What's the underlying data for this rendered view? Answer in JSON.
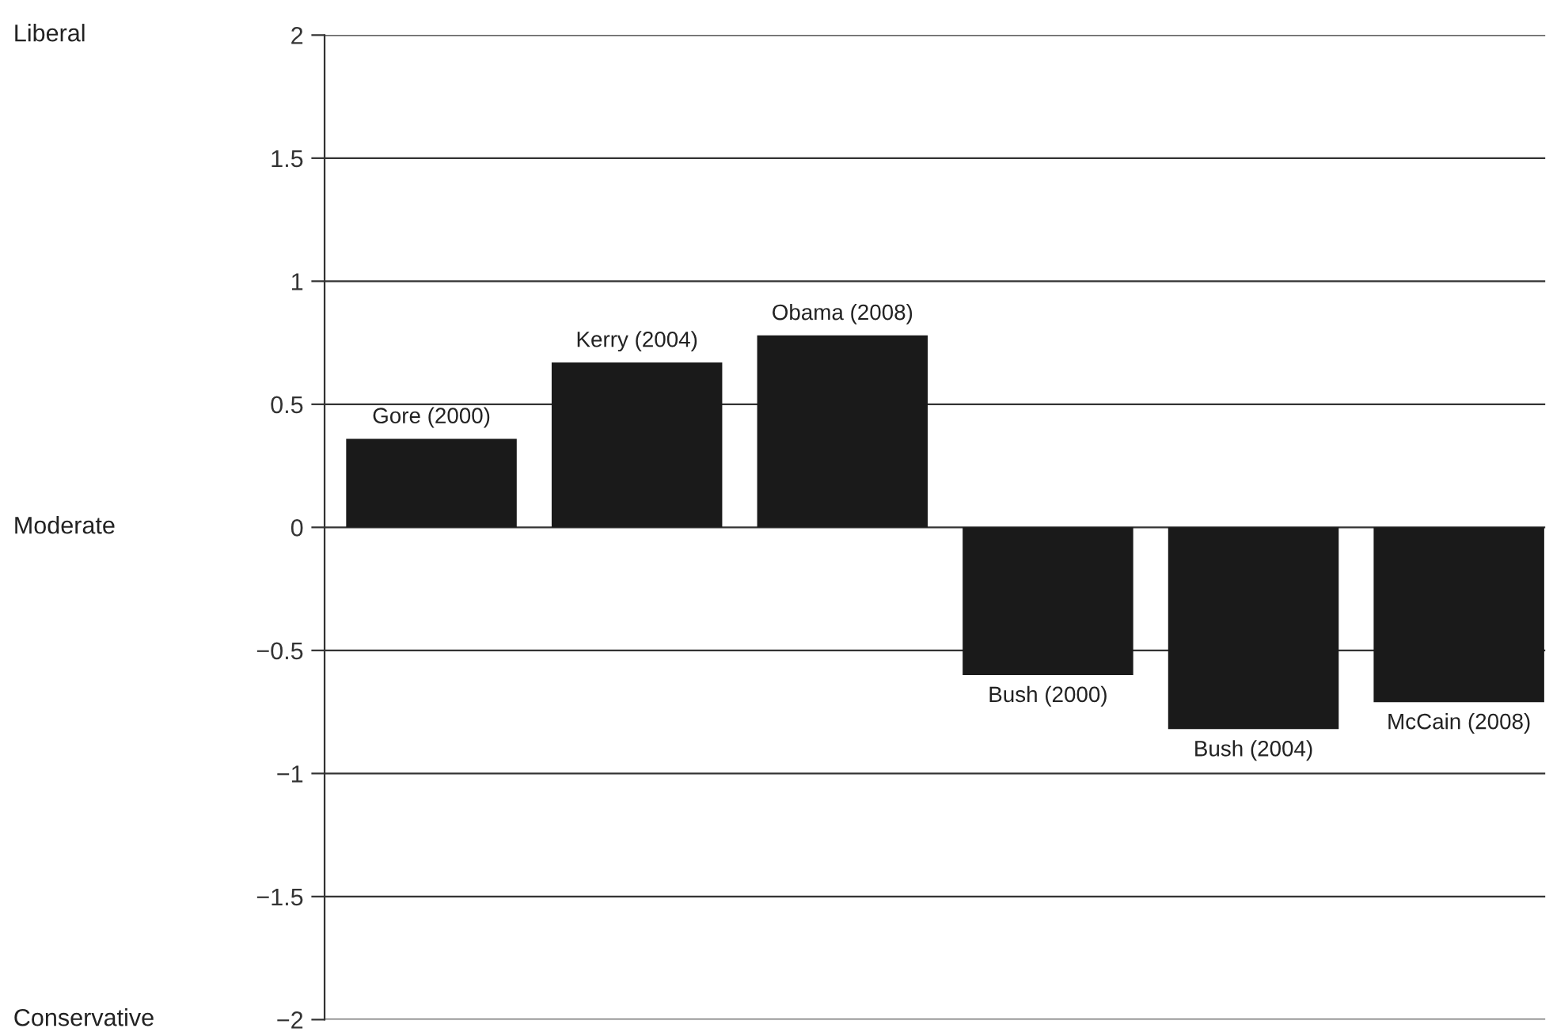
{
  "chart_data": {
    "type": "bar",
    "categories": [
      "Gore (2000)",
      "Kerry (2004)",
      "Obama (2008)",
      "Bush (2000)",
      "Bush (2004)",
      "McCain (2008)"
    ],
    "values": [
      0.36,
      0.67,
      0.78,
      -0.6,
      -0.82,
      -0.71
    ],
    "color": "#1a1a1a",
    "ylim": [
      -2,
      2
    ],
    "yticks": [
      {
        "value": -2,
        "label": "−2"
      },
      {
        "value": -1.5,
        "label": "−1.5"
      },
      {
        "value": -1,
        "label": "−1"
      },
      {
        "value": -0.5,
        "label": "−0.5"
      },
      0,
      0.5,
      1,
      1.5,
      2
    ],
    "grid": "y",
    "annotations": [
      "Liberal",
      "Moderate",
      "Conservative"
    ]
  }
}
